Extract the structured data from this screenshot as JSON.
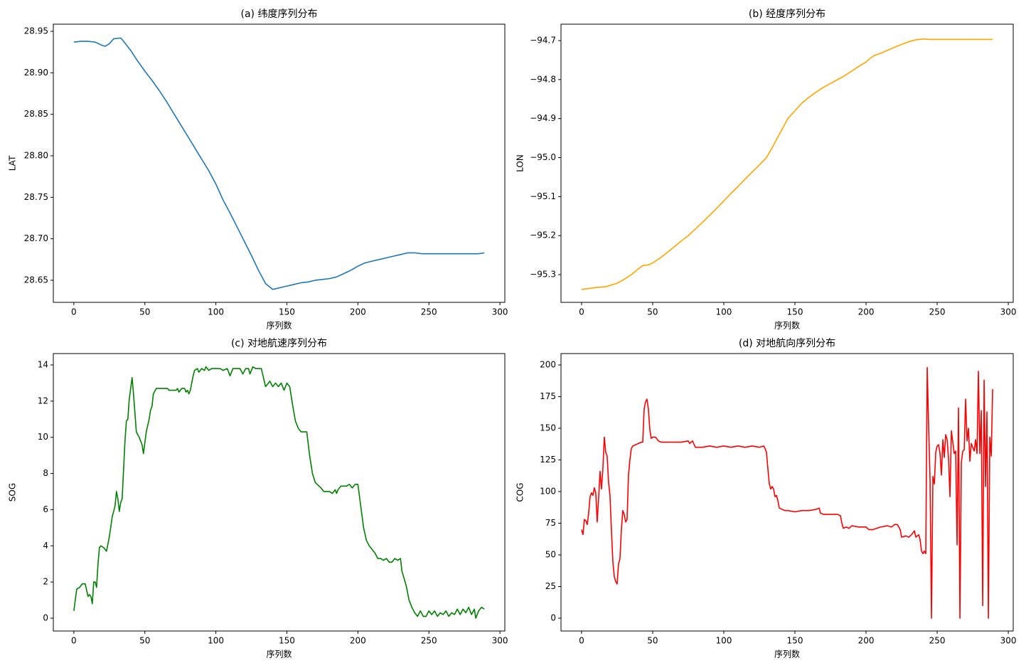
{
  "chart_data": [
    {
      "type": "line",
      "title": "(a) 纬度序列分布",
      "xlabel": "序列数",
      "ylabel": "LAT",
      "color": "#1f77b4",
      "x": [
        0,
        5,
        10,
        15,
        20,
        22,
        25,
        28,
        33,
        35,
        40,
        45,
        50,
        55,
        60,
        65,
        70,
        75,
        80,
        85,
        90,
        95,
        100,
        105,
        110,
        115,
        120,
        125,
        130,
        135,
        140,
        145,
        150,
        155,
        160,
        165,
        170,
        175,
        180,
        185,
        190,
        195,
        200,
        205,
        210,
        215,
        220,
        225,
        230,
        235,
        240,
        245,
        250,
        255,
        260,
        265,
        270,
        275,
        280,
        285,
        289
      ],
      "values": [
        28.937,
        28.938,
        28.938,
        28.937,
        28.933,
        28.932,
        28.935,
        28.941,
        28.942,
        28.938,
        28.927,
        28.914,
        28.902,
        28.891,
        28.879,
        28.866,
        28.852,
        28.838,
        28.824,
        28.81,
        28.796,
        28.782,
        28.766,
        28.747,
        28.731,
        28.714,
        28.697,
        28.68,
        28.662,
        28.646,
        28.639,
        28.641,
        28.643,
        28.645,
        28.647,
        28.648,
        28.65,
        28.651,
        28.652,
        28.654,
        28.658,
        28.662,
        28.667,
        28.671,
        28.673,
        28.675,
        28.677,
        28.679,
        28.681,
        28.683,
        28.683,
        28.682,
        28.682,
        28.682,
        28.682,
        28.682,
        28.682,
        28.682,
        28.682,
        28.682,
        28.683
      ],
      "xlim": [
        -14.45,
        303.45
      ],
      "ylim": [
        28.6234,
        28.9586
      ],
      "xticks": [
        0,
        50,
        100,
        150,
        200,
        250,
        300
      ],
      "yticks": [
        28.65,
        {
          "value": 28.7,
          "label": "28.70"
        },
        28.75,
        {
          "value": 28.8,
          "label": "28.80"
        },
        28.85,
        {
          "value": 28.9,
          "label": "28.90"
        },
        28.95
      ]
    },
    {
      "type": "line",
      "title": "(b) 经度序列分布",
      "xlabel": "序列数",
      "ylabel": "LON",
      "color": "#ffa500",
      "x": [
        0,
        10,
        17,
        25,
        30,
        35,
        40,
        43,
        47,
        50,
        55,
        60,
        65,
        70,
        75,
        80,
        85,
        90,
        95,
        100,
        105,
        110,
        115,
        120,
        125,
        130,
        135,
        140,
        145,
        150,
        155,
        160,
        165,
        170,
        175,
        180,
        185,
        190,
        195,
        200,
        203,
        206,
        210,
        215,
        220,
        225,
        230,
        235,
        240,
        245,
        250,
        255,
        260,
        265,
        270,
        275,
        280,
        285,
        289
      ],
      "values": [
        -95.338,
        -95.333,
        -95.331,
        -95.322,
        -95.312,
        -95.3,
        -95.285,
        -95.277,
        -95.275,
        -95.27,
        -95.258,
        -95.244,
        -95.229,
        -95.214,
        -95.2,
        -95.183,
        -95.166,
        -95.148,
        -95.13,
        -95.111,
        -95.092,
        -95.074,
        -95.055,
        -95.037,
        -95.019,
        -95.0,
        -94.968,
        -94.934,
        -94.9,
        -94.88,
        -94.86,
        -94.845,
        -94.832,
        -94.82,
        -94.81,
        -94.8,
        -94.79,
        -94.778,
        -94.766,
        -94.755,
        -94.745,
        -94.738,
        -94.733,
        -94.725,
        -94.717,
        -94.71,
        -94.703,
        -94.698,
        -94.696,
        -94.697,
        -94.697,
        -94.697,
        -94.697,
        -94.697,
        -94.697,
        -94.697,
        -94.697,
        -94.697,
        -94.697
      ],
      "xlim": [
        -14.45,
        303.45
      ],
      "ylim": [
        -95.371,
        -94.658
      ],
      "xticks": [
        0,
        50,
        100,
        150,
        200,
        250,
        300
      ],
      "yticks": [
        {
          "value": -95.3,
          "label": "−95.3"
        },
        {
          "value": -95.2,
          "label": "−95.2"
        },
        {
          "value": -95.1,
          "label": "−95.1"
        },
        {
          "value": -95.0,
          "label": "−95.0"
        },
        {
          "value": -94.9,
          "label": "−94.9"
        },
        {
          "value": -94.8,
          "label": "−94.8"
        },
        {
          "value": -94.7,
          "label": "−94.7"
        }
      ]
    },
    {
      "type": "line",
      "title": "(c) 对地航速序列分布",
      "xlabel": "序列数",
      "ylabel": "SOG",
      "color": "#008000",
      "x": [
        0,
        2,
        4,
        6,
        8,
        10,
        11,
        12,
        13,
        14,
        15,
        16,
        17,
        18,
        19,
        21,
        23,
        25,
        27,
        29,
        30,
        31,
        32,
        33,
        34,
        36,
        37,
        38,
        39,
        40,
        41,
        42,
        44,
        46,
        48,
        49,
        51,
        53,
        54,
        55,
        56,
        58,
        62,
        66,
        67,
        72,
        73,
        74,
        76,
        78,
        79,
        80,
        81,
        82,
        84,
        85,
        87,
        88,
        90,
        92,
        93,
        95,
        97,
        100,
        103,
        105,
        108,
        110,
        112,
        115,
        117,
        119,
        121,
        123,
        124,
        126,
        128,
        132,
        135,
        138,
        140,
        142,
        144,
        146,
        148,
        150,
        151,
        152,
        154,
        156,
        158,
        160,
        164,
        166,
        168,
        170,
        174,
        176,
        180,
        182,
        184,
        185,
        186,
        188,
        192,
        194,
        196,
        198,
        200,
        201,
        203,
        204,
        206,
        208,
        212,
        214,
        216,
        218,
        220,
        222,
        224,
        226,
        228,
        230,
        231,
        234,
        236,
        238,
        240,
        242,
        244,
        246,
        248,
        250,
        252,
        254,
        256,
        258,
        260,
        262,
        264,
        266,
        268,
        270,
        272,
        274,
        276,
        278,
        280,
        282,
        283,
        285,
        287,
        289
      ],
      "values": [
        0.4,
        1.6,
        1.7,
        1.9,
        1.9,
        1.2,
        1.3,
        1.2,
        0.8,
        2.0,
        2.0,
        1.7,
        3.0,
        3.9,
        4.0,
        3.9,
        3.7,
        4.5,
        5.6,
        6.2,
        7.0,
        6.6,
        5.9,
        6.4,
        6.6,
        9.8,
        10.9,
        11.0,
        12.1,
        12.7,
        13.3,
        12.4,
        10.3,
        10.0,
        9.6,
        9.1,
        10.3,
        11.0,
        11.5,
        11.7,
        12.4,
        12.7,
        12.7,
        12.7,
        12.6,
        12.6,
        12.7,
        12.5,
        12.7,
        12.7,
        12.5,
        12.6,
        12.4,
        12.6,
        13.4,
        13.7,
        13.8,
        13.6,
        13.8,
        13.7,
        13.9,
        13.7,
        13.8,
        13.8,
        13.8,
        13.7,
        13.8,
        13.4,
        13.8,
        13.8,
        13.8,
        13.5,
        13.8,
        13.8,
        13.5,
        13.9,
        13.8,
        13.8,
        12.8,
        13.1,
        12.8,
        13.0,
        12.8,
        13.0,
        12.6,
        13.0,
        12.9,
        12.8,
        11.8,
        10.9,
        10.5,
        10.3,
        10.3,
        9.0,
        8.0,
        7.5,
        7.2,
        7.0,
        7.0,
        6.9,
        7.1,
        6.9,
        7.1,
        7.3,
        7.3,
        7.4,
        7.2,
        7.4,
        7.4,
        6.8,
        5.6,
        5.0,
        4.3,
        4.0,
        3.6,
        3.3,
        3.3,
        3.2,
        3.3,
        3.1,
        3.1,
        3.3,
        3.2,
        3.3,
        2.6,
        1.8,
        1.0,
        0.6,
        0.3,
        0.1,
        0.4,
        0.1,
        0.1,
        0.4,
        0.2,
        0.4,
        0.1,
        0.3,
        0.2,
        0.4,
        0.1,
        0.3,
        0.2,
        0.5,
        0.2,
        0.5,
        0.3,
        0.6,
        0.2,
        0.5,
        0.0,
        0.4,
        0.6,
        0.5
      ],
      "xlim": [
        -14.45,
        303.45
      ],
      "ylim": [
        -0.71,
        14.63
      ],
      "xticks": [
        0,
        50,
        100,
        150,
        200,
        250,
        300
      ],
      "yticks": [
        0,
        2,
        4,
        6,
        8,
        10,
        12,
        14
      ]
    },
    {
      "type": "line",
      "title": "(d) 对地航向序列分布",
      "xlabel": "序列数",
      "ylabel": "COG",
      "color": "#ff0000",
      "x": [
        0,
        1,
        2,
        3,
        4,
        5,
        6,
        7,
        8,
        9,
        10,
        11,
        12,
        13,
        14,
        15,
        16,
        17,
        18,
        19,
        20,
        21,
        22,
        23,
        24,
        25,
        26,
        27,
        28,
        29,
        30,
        31,
        32,
        33,
        34,
        35,
        36,
        38,
        40,
        42,
        43,
        44,
        45,
        46,
        47,
        48,
        49,
        50,
        52,
        54,
        56,
        60,
        65,
        70,
        75,
        76,
        78,
        80,
        85,
        90,
        95,
        100,
        105,
        110,
        115,
        120,
        125,
        128,
        129,
        130,
        131,
        132,
        133,
        134,
        135,
        136,
        137,
        138,
        139,
        141,
        143,
        145,
        150,
        155,
        160,
        165,
        167,
        168,
        170,
        175,
        180,
        182,
        183,
        184,
        186,
        188,
        190,
        195,
        200,
        202,
        205,
        210,
        215,
        218,
        220,
        222,
        224,
        225,
        228,
        230,
        232,
        234,
        235,
        237,
        238,
        239,
        240,
        241,
        242,
        243,
        244,
        245,
        246,
        247,
        248,
        249,
        250,
        251,
        252,
        253,
        254,
        255,
        256,
        257,
        258,
        259,
        260,
        262,
        263,
        264,
        265,
        266,
        267,
        268,
        269,
        270,
        271,
        272,
        273,
        274,
        275,
        276,
        277,
        278,
        279,
        280,
        281,
        282,
        283,
        284,
        285,
        286,
        287,
        288,
        289
      ],
      "values": [
        70,
        66,
        78,
        77,
        74,
        83,
        96,
        99,
        97,
        103,
        99,
        76,
        95,
        116,
        102,
        118,
        143,
        131,
        128,
        107,
        97,
        70,
        45,
        33,
        29,
        27,
        43,
        47,
        70,
        85,
        82,
        76,
        78,
        113,
        125,
        134,
        136,
        137,
        138,
        139,
        139,
        165,
        171,
        173,
        165,
        149,
        142,
        143,
        143,
        140,
        139,
        139,
        139,
        139,
        140,
        138,
        140,
        135,
        135,
        136,
        135,
        136,
        135,
        136,
        135,
        136,
        135,
        136,
        134,
        131,
        118,
        106,
        102,
        104,
        102,
        96,
        97,
        93,
        87,
        86,
        85,
        85,
        84,
        85,
        85,
        86,
        87,
        83,
        82,
        82,
        82,
        81,
        75,
        71,
        72,
        71,
        73,
        72,
        72,
        70,
        70,
        72,
        73,
        72,
        74,
        74,
        70,
        64,
        65,
        64,
        66,
        69,
        64,
        66,
        62,
        53,
        51,
        53,
        51,
        198,
        151,
        109,
        0,
        112,
        106,
        131,
        136,
        137,
        130,
        113,
        141,
        127,
        145,
        141,
        126,
        96,
        148,
        130,
        132,
        58,
        166,
        0,
        123,
        132,
        133,
        173,
        140,
        150,
        124,
        138,
        135,
        132,
        141,
        130,
        195,
        130,
        164,
        10,
        188,
        104,
        163,
        0,
        143,
        128,
        181
      ],
      "xlim": [
        -14.45,
        303.45
      ],
      "ylim": [
        -10.1,
        209
      ],
      "xticks": [
        0,
        50,
        100,
        150,
        200,
        250,
        300
      ],
      "yticks": [
        0,
        25,
        50,
        75,
        100,
        125,
        150,
        175,
        200
      ]
    }
  ]
}
